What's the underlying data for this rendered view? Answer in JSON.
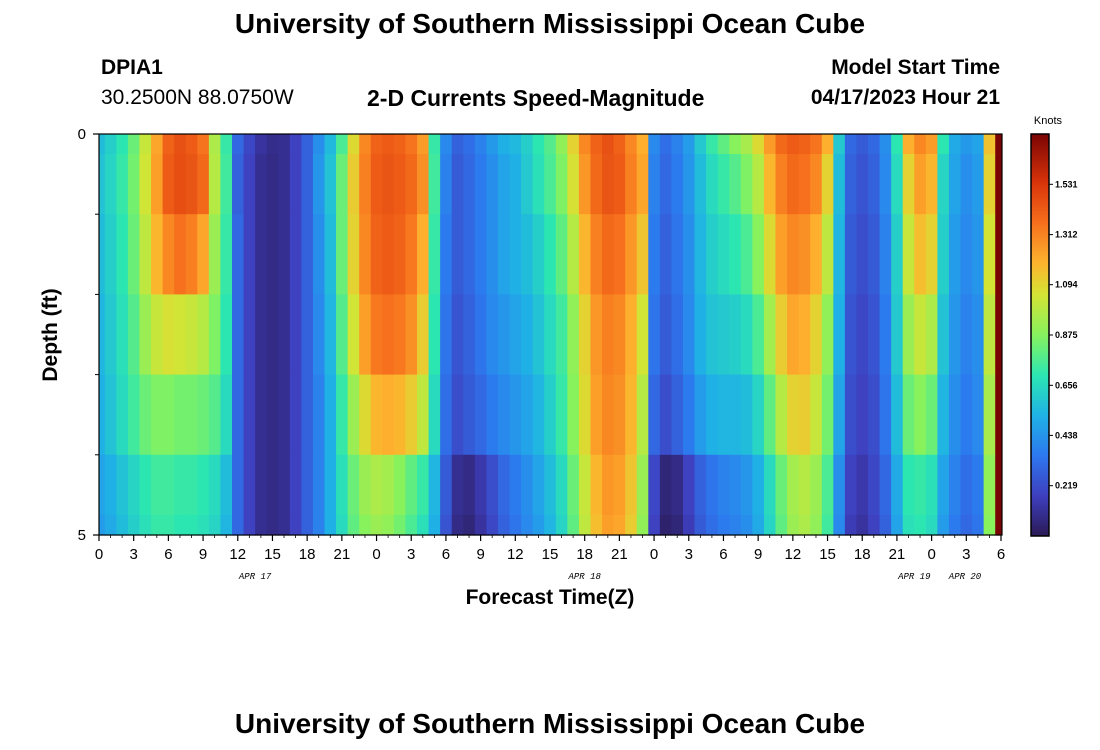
{
  "page": {
    "title": "University of Southern Mississippi Ocean Cube",
    "footer_title": "University of Southern Mississippi Ocean Cube",
    "station_id": "DPIA1",
    "coordinates": "30.2500N  88.0750W",
    "subtitle": "2-D Currents Speed-Magnitude",
    "model_label": "Model Start Time",
    "model_time": "04/17/2023 Hour 21"
  },
  "chart_data": {
    "type": "heatmap",
    "title": "2-D Currents Speed-Magnitude",
    "xlabel": "Forecast Time(Z)",
    "ylabel": "Depth (ft)",
    "ylim": [
      0,
      5
    ],
    "y_tick_labels": [
      "0",
      "5"
    ],
    "x_tick_labels": [
      "0",
      "3",
      "6",
      "9",
      "12",
      "15",
      "18",
      "21",
      "0",
      "3",
      "6",
      "9",
      "12",
      "15",
      "18",
      "21",
      "0",
      "3",
      "6",
      "9",
      "12",
      "15",
      "18",
      "21",
      "0",
      "3",
      "6"
    ],
    "date_labels": [
      "APR 17",
      "APR 18",
      "APR 19",
      "APR 20"
    ],
    "colorbar": {
      "title": "Knots",
      "min": 0.0,
      "max": 1.75,
      "tick_values": [
        0.219,
        0.438,
        0.656,
        0.875,
        1.094,
        1.312,
        1.531
      ],
      "tick_labels": [
        "0.219",
        "0.438",
        "0.656",
        "0.875",
        "1.094",
        "1.312",
        "1.531"
      ]
    },
    "hours": [
      0,
      1,
      2,
      3,
      4,
      5,
      6,
      7,
      8,
      9,
      10,
      11,
      12,
      13,
      14,
      15,
      16,
      17,
      18,
      19,
      20,
      21,
      22,
      23,
      24,
      25,
      26,
      27,
      28,
      29,
      30,
      31,
      32,
      33,
      34,
      35,
      36,
      37,
      38,
      39,
      40,
      41,
      42,
      43,
      44,
      45,
      46,
      47,
      48,
      49,
      50,
      51,
      52,
      53,
      54,
      55,
      56,
      57,
      58,
      59,
      60,
      61,
      62,
      63,
      64,
      65,
      66,
      67,
      68,
      69,
      70,
      71,
      72,
      73,
      74,
      75,
      76,
      77,
      78
    ],
    "depths": [
      0,
      0.5,
      1.5,
      2.5,
      3.5,
      4.5,
      5
    ],
    "speed_knots": [
      [
        0.56,
        0.62,
        0.7,
        0.82,
        1.02,
        1.22,
        1.4,
        1.45,
        1.42,
        1.35,
        0.96,
        0.72,
        0.3,
        0.2,
        0.12,
        0.09,
        0.1,
        0.18,
        0.28,
        0.42,
        0.55,
        0.76,
        1.08,
        1.3,
        1.4,
        1.42,
        1.4,
        1.35,
        1.25,
        0.72,
        0.4,
        0.28,
        0.32,
        0.38,
        0.45,
        0.52,
        0.55,
        0.62,
        0.7,
        0.78,
        0.9,
        1.1,
        1.3,
        1.4,
        1.45,
        1.4,
        1.3,
        1.2,
        0.4,
        0.32,
        0.38,
        0.46,
        0.6,
        0.72,
        0.8,
        0.88,
        0.95,
        1.08,
        1.25,
        1.38,
        1.42,
        1.4,
        1.35,
        1.2,
        0.6,
        0.3,
        0.26,
        0.3,
        0.42,
        0.7,
        1.2,
        1.3,
        1.25,
        0.7,
        0.5,
        0.45,
        0.48,
        1.15,
        1.75
      ],
      [
        0.58,
        0.64,
        0.72,
        0.84,
        1.04,
        1.24,
        1.42,
        1.46,
        1.44,
        1.38,
        0.98,
        0.74,
        0.28,
        0.18,
        0.1,
        0.08,
        0.1,
        0.18,
        0.28,
        0.44,
        0.58,
        0.82,
        1.12,
        1.32,
        1.42,
        1.44,
        1.42,
        1.38,
        1.28,
        0.74,
        0.38,
        0.26,
        0.3,
        0.36,
        0.42,
        0.48,
        0.52,
        0.6,
        0.68,
        0.76,
        0.86,
        1.06,
        1.26,
        1.38,
        1.44,
        1.42,
        1.32,
        1.22,
        0.38,
        0.3,
        0.36,
        0.44,
        0.56,
        0.66,
        0.72,
        0.78,
        0.86,
        0.98,
        1.18,
        1.32,
        1.38,
        1.36,
        1.3,
        1.1,
        0.56,
        0.28,
        0.24,
        0.28,
        0.4,
        0.66,
        1.1,
        1.24,
        1.18,
        0.64,
        0.48,
        0.42,
        0.46,
        1.1,
        1.75
      ],
      [
        0.56,
        0.62,
        0.7,
        0.82,
        1.0,
        1.18,
        1.3,
        1.36,
        1.32,
        1.22,
        0.92,
        0.72,
        0.3,
        0.18,
        0.1,
        0.08,
        0.1,
        0.18,
        0.28,
        0.42,
        0.56,
        0.82,
        1.1,
        1.3,
        1.4,
        1.42,
        1.4,
        1.34,
        1.2,
        0.72,
        0.36,
        0.26,
        0.3,
        0.36,
        0.42,
        0.48,
        0.52,
        0.56,
        0.62,
        0.7,
        0.8,
        0.98,
        1.18,
        1.32,
        1.38,
        1.36,
        1.26,
        1.14,
        0.36,
        0.28,
        0.34,
        0.42,
        0.54,
        0.62,
        0.66,
        0.7,
        0.76,
        0.88,
        1.08,
        1.24,
        1.3,
        1.28,
        1.2,
        1.0,
        0.54,
        0.26,
        0.22,
        0.26,
        0.38,
        0.62,
        1.02,
        1.16,
        1.1,
        0.62,
        0.46,
        0.4,
        0.44,
        1.05,
        1.75
      ],
      [
        0.54,
        0.6,
        0.68,
        0.78,
        0.92,
        1.02,
        1.06,
        1.04,
        1.02,
        0.98,
        0.86,
        0.7,
        0.3,
        0.18,
        0.1,
        0.08,
        0.1,
        0.18,
        0.28,
        0.4,
        0.54,
        0.78,
        1.04,
        1.24,
        1.34,
        1.36,
        1.34,
        1.28,
        1.12,
        0.7,
        0.34,
        0.24,
        0.28,
        0.34,
        0.4,
        0.44,
        0.48,
        0.52,
        0.58,
        0.66,
        0.74,
        0.9,
        1.1,
        1.26,
        1.32,
        1.3,
        1.2,
        1.04,
        0.34,
        0.26,
        0.32,
        0.4,
        0.52,
        0.58,
        0.6,
        0.62,
        0.66,
        0.76,
        0.94,
        1.12,
        1.22,
        1.2,
        1.1,
        0.9,
        0.52,
        0.24,
        0.2,
        0.24,
        0.36,
        0.6,
        0.92,
        1.02,
        0.96,
        0.58,
        0.44,
        0.38,
        0.42,
        1.0,
        1.75
      ],
      [
        0.52,
        0.58,
        0.66,
        0.74,
        0.82,
        0.86,
        0.86,
        0.84,
        0.84,
        0.82,
        0.78,
        0.66,
        0.3,
        0.18,
        0.1,
        0.08,
        0.1,
        0.18,
        0.28,
        0.38,
        0.52,
        0.72,
        0.92,
        1.08,
        1.18,
        1.2,
        1.18,
        1.12,
        1.0,
        0.66,
        0.32,
        0.22,
        0.26,
        0.3,
        0.36,
        0.4,
        0.44,
        0.48,
        0.54,
        0.62,
        0.72,
        0.88,
        1.08,
        1.24,
        1.3,
        1.28,
        1.18,
        0.98,
        0.3,
        0.22,
        0.28,
        0.36,
        0.46,
        0.52,
        0.54,
        0.54,
        0.56,
        0.64,
        0.8,
        0.98,
        1.1,
        1.12,
        1.02,
        0.84,
        0.48,
        0.22,
        0.18,
        0.22,
        0.34,
        0.56,
        0.82,
        0.88,
        0.82,
        0.54,
        0.42,
        0.36,
        0.4,
        0.95,
        1.75
      ],
      [
        0.48,
        0.52,
        0.58,
        0.64,
        0.7,
        0.74,
        0.74,
        0.72,
        0.72,
        0.7,
        0.66,
        0.56,
        0.3,
        0.18,
        0.1,
        0.08,
        0.1,
        0.18,
        0.28,
        0.38,
        0.52,
        0.68,
        0.82,
        0.92,
        0.96,
        0.94,
        0.88,
        0.8,
        0.72,
        0.54,
        0.26,
        0.1,
        0.08,
        0.14,
        0.22,
        0.3,
        0.36,
        0.42,
        0.48,
        0.56,
        0.66,
        0.82,
        1.02,
        1.18,
        1.26,
        1.24,
        1.14,
        0.92,
        0.2,
        0.06,
        0.08,
        0.18,
        0.28,
        0.34,
        0.38,
        0.4,
        0.44,
        0.52,
        0.66,
        0.82,
        0.94,
        0.98,
        0.92,
        0.76,
        0.42,
        0.18,
        0.14,
        0.2,
        0.3,
        0.5,
        0.7,
        0.72,
        0.68,
        0.48,
        0.38,
        0.32,
        0.36,
        0.9,
        1.75
      ],
      [
        0.46,
        0.5,
        0.56,
        0.62,
        0.68,
        0.72,
        0.72,
        0.7,
        0.7,
        0.68,
        0.64,
        0.54,
        0.3,
        0.18,
        0.1,
        0.08,
        0.1,
        0.18,
        0.28,
        0.38,
        0.52,
        0.66,
        0.8,
        0.88,
        0.92,
        0.9,
        0.84,
        0.76,
        0.68,
        0.52,
        0.24,
        0.08,
        0.06,
        0.12,
        0.2,
        0.28,
        0.34,
        0.4,
        0.46,
        0.54,
        0.64,
        0.8,
        1.0,
        1.16,
        1.24,
        1.22,
        1.12,
        0.9,
        0.18,
        0.04,
        0.06,
        0.16,
        0.26,
        0.32,
        0.36,
        0.38,
        0.42,
        0.5,
        0.64,
        0.8,
        0.92,
        0.96,
        0.9,
        0.74,
        0.4,
        0.16,
        0.12,
        0.18,
        0.28,
        0.48,
        0.68,
        0.7,
        0.66,
        0.46,
        0.36,
        0.3,
        0.34,
        0.88,
        1.75
      ]
    ]
  }
}
